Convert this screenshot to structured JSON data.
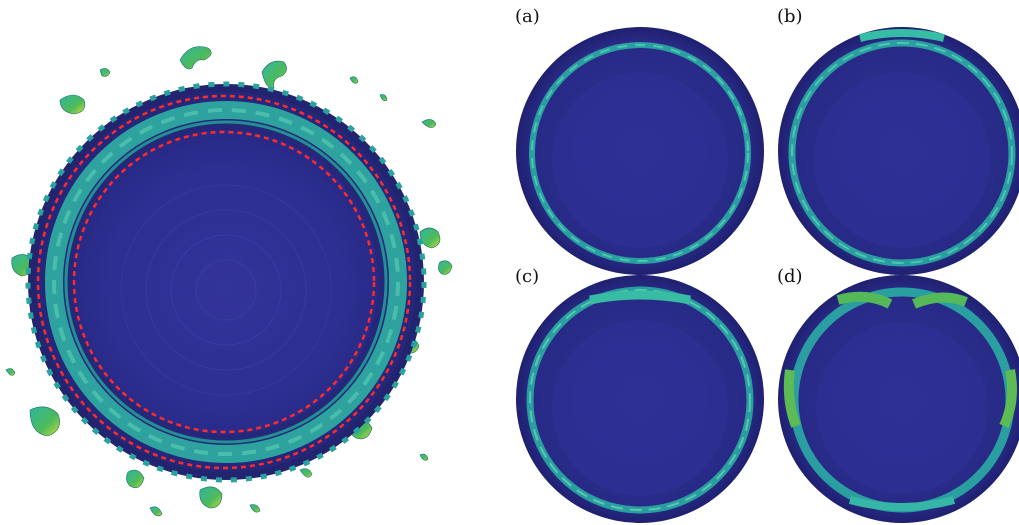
{
  "figure": {
    "panels": [
      {
        "id": "a",
        "label": "(a)"
      },
      {
        "id": "b",
        "label": "(b)"
      },
      {
        "id": "c",
        "label": "(c)"
      },
      {
        "id": "d",
        "label": "(d)"
      }
    ],
    "colors": {
      "background": "#ffffff",
      "core_blue": "#2e2f94",
      "rim_navy": "#22236e",
      "band_teal": "#27b7a6",
      "band_green": "#39b54a",
      "blob_yellow": "#d9dd35",
      "dashed_circle": "#ff2a2a"
    }
  }
}
